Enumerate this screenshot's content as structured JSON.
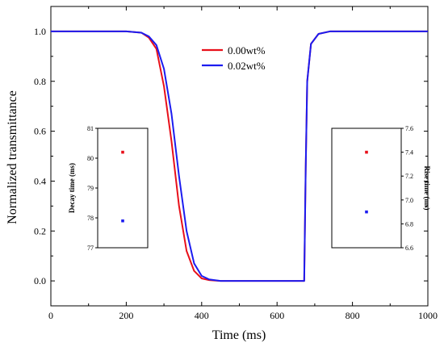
{
  "chart_data": [
    {
      "type": "line",
      "xlabel": "Time (ms)",
      "ylabel": "Normalized transmittance",
      "xlim": [
        0,
        1000
      ],
      "ylim": [
        -0.1,
        1.1
      ],
      "x_ticks": [
        "0",
        "200",
        "400",
        "600",
        "800",
        "1000"
      ],
      "y_ticks": [
        "0.0",
        "0.2",
        "0.4",
        "0.6",
        "0.8",
        "1.0"
      ],
      "legend": {
        "placement": "top-center"
      },
      "series": [
        {
          "name": "0.00wt%",
          "color": "#e8101a",
          "points": [
            [
              0,
              1.0
            ],
            [
              200,
              1.0
            ],
            [
              240,
              0.995
            ],
            [
              260,
              0.975
            ],
            [
              280,
              0.93
            ],
            [
              300,
              0.78
            ],
            [
              320,
              0.56
            ],
            [
              340,
              0.3
            ],
            [
              360,
              0.12
            ],
            [
              380,
              0.04
            ],
            [
              400,
              0.01
            ],
            [
              420,
              0.003
            ],
            [
              450,
              0.0
            ],
            [
              672,
              0.0
            ],
            [
              676,
              0.45
            ],
            [
              680,
              0.8
            ],
            [
              690,
              0.95
            ],
            [
              710,
              0.99
            ],
            [
              740,
              1.0
            ],
            [
              1000,
              1.0
            ]
          ]
        },
        {
          "name": "0.02wt%",
          "color": "#1c1cf0",
          "points": [
            [
              0,
              1.0
            ],
            [
              200,
              1.0
            ],
            [
              240,
              0.995
            ],
            [
              260,
              0.98
            ],
            [
              280,
              0.945
            ],
            [
              300,
              0.85
            ],
            [
              320,
              0.67
            ],
            [
              340,
              0.42
            ],
            [
              360,
              0.2
            ],
            [
              380,
              0.07
            ],
            [
              400,
              0.02
            ],
            [
              420,
              0.006
            ],
            [
              450,
              0.0
            ],
            [
              672,
              0.0
            ],
            [
              676,
              0.45
            ],
            [
              680,
              0.8
            ],
            [
              690,
              0.95
            ],
            [
              710,
              0.99
            ],
            [
              740,
              1.0
            ],
            [
              1000,
              1.0
            ]
          ]
        }
      ]
    },
    {
      "type": "scatter",
      "ylabel": "Decay time (ms)",
      "ylim": [
        77,
        81
      ],
      "y_ticks": [
        "77",
        "78",
        "79",
        "80",
        "81"
      ],
      "points": [
        {
          "series": "0.00wt%",
          "y": 80.2,
          "color": "#e8101a"
        },
        {
          "series": "0.02wt%",
          "y": 77.9,
          "color": "#1c1cf0"
        }
      ]
    },
    {
      "type": "scatter",
      "ylabel": "Rise time (ms)",
      "ylim": [
        6.6,
        7.6
      ],
      "y_ticks": [
        "6.6",
        "6.8",
        "7.0",
        "7.2",
        "7.4",
        "7.6"
      ],
      "points": [
        {
          "series": "0.00wt%",
          "y": 7.4,
          "color": "#e8101a"
        },
        {
          "series": "0.02wt%",
          "y": 6.9,
          "color": "#1c1cf0"
        }
      ]
    }
  ]
}
